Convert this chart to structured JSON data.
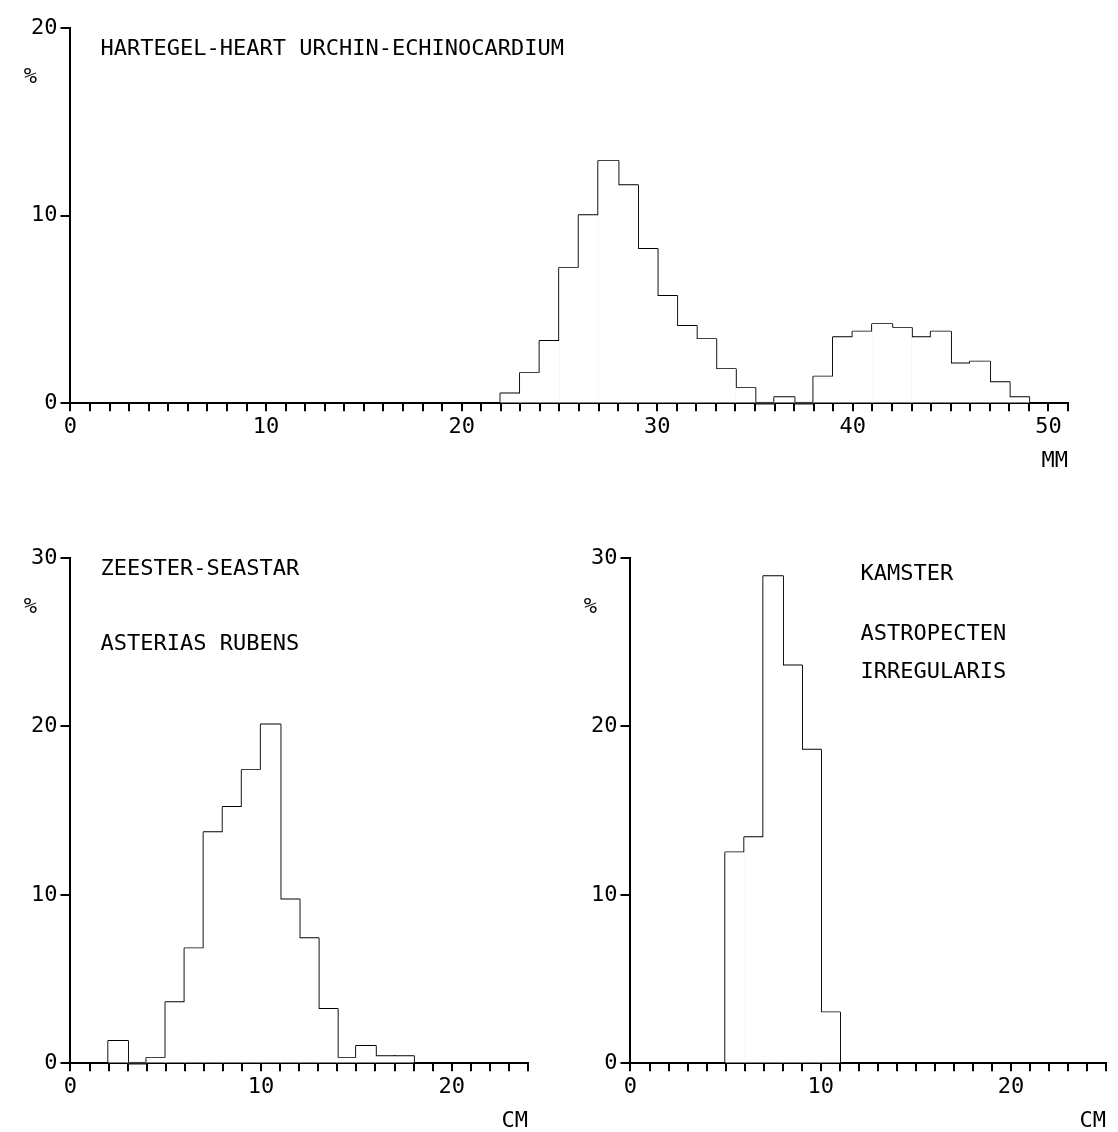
{
  "chart_data": [
    {
      "type": "histogram",
      "title": "HARTEGEL-HEART URCHIN-ECHINOCARDIUM",
      "xlabel": "MM",
      "ylabel": "%",
      "color": "#ffffff",
      "bins": [
        22,
        23,
        24,
        25,
        26,
        27,
        28,
        29,
        30,
        31,
        32,
        33,
        34,
        35,
        36,
        37,
        38,
        39,
        40,
        41,
        42,
        43,
        44,
        45,
        46,
        47,
        48,
        49
      ],
      "values": [
        0.5,
        1.6,
        3.3,
        7.2,
        10.0,
        12.9,
        11.6,
        8.2,
        5.7,
        4.1,
        3.4,
        1.8,
        0.8,
        0,
        0.3,
        0,
        1.4,
        3.5,
        3.8,
        4.2,
        4.0,
        3.5,
        3.8,
        2.1,
        2.2,
        1.1,
        0.3
      ],
      "xlim": [
        0,
        51
      ],
      "ylim": [
        0,
        20
      ],
      "yticks": [
        0,
        10,
        20
      ],
      "xticks": [
        0,
        {
          "value": 1,
          "label": null
        },
        {
          "value": 2,
          "label": null
        },
        {
          "value": 3,
          "label": null
        },
        {
          "value": 4,
          "label": null
        },
        {
          "value": 5,
          "label": null
        },
        {
          "value": 6,
          "label": null
        },
        {
          "value": 7,
          "label": null
        },
        {
          "value": 8,
          "label": null
        },
        {
          "value": 9,
          "label": null
        },
        10,
        {
          "value": 11,
          "label": null
        },
        {
          "value": 12,
          "label": null
        },
        {
          "value": 13,
          "label": null
        },
        {
          "value": 14,
          "label": null
        },
        {
          "value": 15,
          "label": null
        },
        {
          "value": 16,
          "label": null
        },
        {
          "value": 17,
          "label": null
        },
        {
          "value": 18,
          "label": null
        },
        {
          "value": 19,
          "label": null
        },
        20,
        {
          "value": 21,
          "label": null
        },
        {
          "value": 22,
          "label": null
        },
        {
          "value": 23,
          "label": null
        },
        {
          "value": 24,
          "label": null
        },
        {
          "value": 25,
          "label": null
        },
        {
          "value": 26,
          "label": null
        },
        {
          "value": 27,
          "label": null
        },
        {
          "value": 28,
          "label": null
        },
        {
          "value": 29,
          "label": null
        },
        30,
        {
          "value": 31,
          "label": null
        },
        {
          "value": 32,
          "label": null
        },
        {
          "value": 33,
          "label": null
        },
        {
          "value": 34,
          "label": null
        },
        {
          "value": 35,
          "label": null
        },
        {
          "value": 36,
          "label": null
        },
        {
          "value": 37,
          "label": null
        },
        {
          "value": 38,
          "label": null
        },
        {
          "value": 39,
          "label": null
        },
        40,
        {
          "value": 41,
          "label": null
        },
        {
          "value": 42,
          "label": null
        },
        {
          "value": 43,
          "label": null
        },
        {
          "value": 44,
          "label": null
        },
        {
          "value": 45,
          "label": null
        },
        {
          "value": 46,
          "label": null
        },
        {
          "value": 47,
          "label": null
        },
        {
          "value": 48,
          "label": null
        },
        {
          "value": 49,
          "label": null
        },
        50,
        {
          "value": 51,
          "label": null
        }
      ]
    },
    {
      "type": "histogram",
      "title": "ZEESTER-SEASTAR",
      "subtitle": "ASTERIAS RUBENS",
      "xlabel": "CM",
      "ylabel": "%",
      "color": "#ffffff",
      "bins": [
        2,
        3,
        4,
        5,
        6,
        7,
        8,
        9,
        10,
        11,
        12,
        13,
        14,
        15,
        16,
        17,
        18
      ],
      "values": [
        1.3,
        0,
        0.3,
        3.6,
        6.8,
        13.7,
        15.2,
        17.4,
        20.1,
        9.7,
        7.4,
        3.2,
        0.3,
        1.0,
        0.4,
        0.4
      ],
      "xlim": [
        0,
        24
      ],
      "ylim": [
        0,
        30
      ],
      "yticks": [
        0,
        10,
        20,
        30
      ],
      "xticks": [
        0,
        {
          "value": 1,
          "label": null
        },
        {
          "value": 2,
          "label": null
        },
        {
          "value": 3,
          "label": null
        },
        {
          "value": 4,
          "label": null
        },
        {
          "value": 5,
          "label": null
        },
        {
          "value": 6,
          "label": null
        },
        {
          "value": 7,
          "label": null
        },
        {
          "value": 8,
          "label": null
        },
        {
          "value": 9,
          "label": null
        },
        10,
        {
          "value": 11,
          "label": null
        },
        {
          "value": 12,
          "label": null
        },
        {
          "value": 13,
          "label": null
        },
        {
          "value": 14,
          "label": null
        },
        {
          "value": 15,
          "label": null
        },
        {
          "value": 16,
          "label": null
        },
        {
          "value": 17,
          "label": null
        },
        {
          "value": 18,
          "label": null
        },
        {
          "value": 19,
          "label": null
        },
        20,
        {
          "value": 21,
          "label": null
        },
        {
          "value": 22,
          "label": null
        },
        {
          "value": 23,
          "label": null
        },
        {
          "value": 24,
          "label": null
        }
      ]
    },
    {
      "type": "histogram",
      "title": "KAMSTER",
      "subtitle": "ASTROPECTEN IRREGULARIS",
      "xlabel": "CM",
      "ylabel": "%",
      "color": "#ffffff",
      "bins": [
        5,
        6,
        7,
        8,
        9,
        10,
        11
      ],
      "values": [
        12.5,
        13.4,
        28.9,
        23.6,
        18.6,
        3.0
      ],
      "xlim": [
        0,
        25
      ],
      "ylim": [
        0,
        30
      ],
      "yticks": [
        0,
        10,
        20,
        30
      ],
      "xticks": [
        0,
        {
          "value": 1,
          "label": null
        },
        {
          "value": 2,
          "label": null
        },
        {
          "value": 3,
          "label": null
        },
        {
          "value": 4,
          "label": null
        },
        {
          "value": 5,
          "label": null
        },
        {
          "value": 6,
          "label": null
        },
        {
          "value": 7,
          "label": null
        },
        {
          "value": 8,
          "label": null
        },
        {
          "value": 9,
          "label": null
        },
        10,
        {
          "value": 11,
          "label": null
        },
        {
          "value": 12,
          "label": null
        },
        {
          "value": 13,
          "label": null
        },
        {
          "value": 14,
          "label": null
        },
        {
          "value": 15,
          "label": null
        },
        {
          "value": 16,
          "label": null
        },
        {
          "value": 17,
          "label": null
        },
        {
          "value": 18,
          "label": null
        },
        {
          "value": 19,
          "label": null
        },
        20,
        {
          "value": 21,
          "label": null
        },
        {
          "value": 22,
          "label": null
        },
        {
          "value": 23,
          "label": null
        },
        {
          "value": 24,
          "label": null
        },
        {
          "value": 25,
          "label": null
        }
      ]
    }
  ]
}
